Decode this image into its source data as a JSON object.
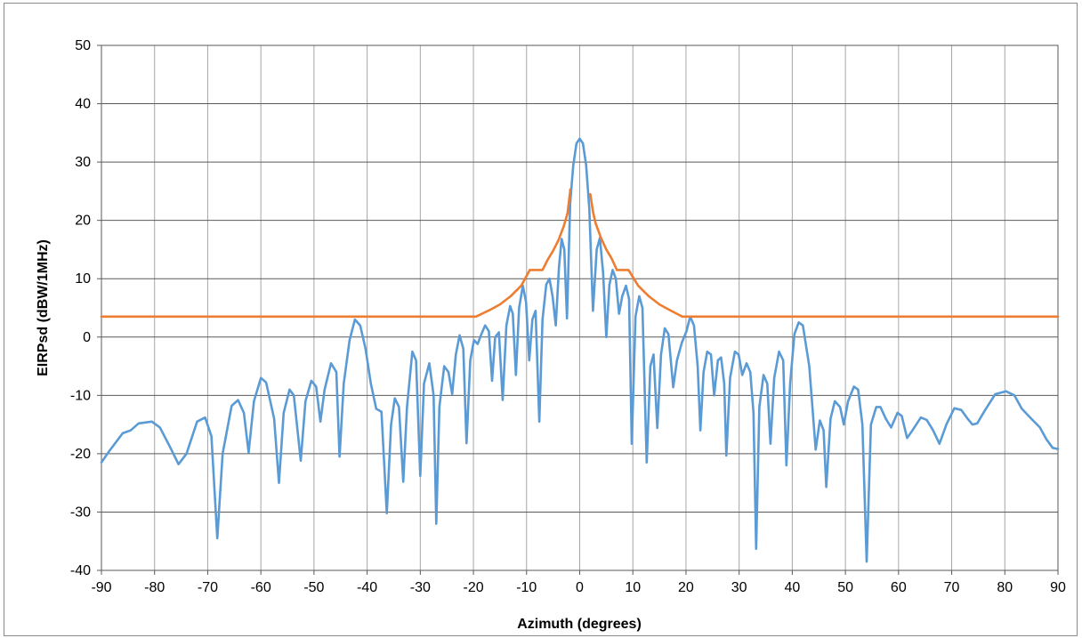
{
  "chart_data": {
    "type": "line",
    "title": "",
    "xlabel": "Azimuth (degrees)",
    "ylabel": "EIRPsd (dBW/1MHz)",
    "xlim": [
      -90,
      90
    ],
    "ylim": [
      -40,
      50
    ],
    "xticks": [
      "-90",
      "-80",
      "-70",
      "-60",
      "-50",
      "-40",
      "-30",
      "-20",
      "-10",
      "0",
      "10",
      "20",
      "30",
      "40",
      "50",
      "60",
      "70",
      "80",
      "90"
    ],
    "yticks": [
      "-40",
      "-30",
      "-20",
      "-10",
      "0",
      "10",
      "20",
      "30",
      "40",
      "50"
    ],
    "grid": true,
    "legend": "none",
    "series": [
      {
        "color": "#5B9BD5",
        "points": [
          [
            -90,
            -21.5
          ],
          [
            -88.5,
            -19.5
          ],
          [
            -86,
            -16.5
          ],
          [
            -84.5,
            -16
          ],
          [
            -83,
            -14.8
          ],
          [
            -80.5,
            -14.5
          ],
          [
            -79,
            -15.5
          ],
          [
            -77,
            -19
          ],
          [
            -75.5,
            -21.8
          ],
          [
            -74,
            -20
          ],
          [
            -72,
            -14.5
          ],
          [
            -70.5,
            -13.8
          ],
          [
            -69.3,
            -17
          ],
          [
            -68.2,
            -34.5
          ],
          [
            -67.2,
            -20
          ],
          [
            -65.5,
            -11.8
          ],
          [
            -64.3,
            -10.8
          ],
          [
            -63.2,
            -13
          ],
          [
            -62.3,
            -19.8
          ],
          [
            -61.3,
            -11
          ],
          [
            -60,
            -7
          ],
          [
            -59,
            -7.8
          ],
          [
            -57.5,
            -14
          ],
          [
            -56.6,
            -25
          ],
          [
            -55.7,
            -13
          ],
          [
            -54.6,
            -9
          ],
          [
            -53.8,
            -10
          ],
          [
            -52.5,
            -21.2
          ],
          [
            -51.6,
            -11
          ],
          [
            -50.5,
            -7.5
          ],
          [
            -49.6,
            -8.5
          ],
          [
            -48.8,
            -14.5
          ],
          [
            -48,
            -9
          ],
          [
            -46.8,
            -4.5
          ],
          [
            -45.8,
            -6
          ],
          [
            -45.2,
            -20.5
          ],
          [
            -44.4,
            -8
          ],
          [
            -43.3,
            -0.5
          ],
          [
            -42.3,
            3
          ],
          [
            -41.3,
            2
          ],
          [
            -40.3,
            -2
          ],
          [
            -39.3,
            -8
          ],
          [
            -38.3,
            -12.3
          ],
          [
            -37.3,
            -12.8
          ],
          [
            -36.3,
            -30.2
          ],
          [
            -35.5,
            -15
          ],
          [
            -34.8,
            -10.5
          ],
          [
            -34,
            -12
          ],
          [
            -33.2,
            -24.8
          ],
          [
            -32.5,
            -12
          ],
          [
            -31.5,
            -2.5
          ],
          [
            -30.8,
            -4
          ],
          [
            -30,
            -23.8
          ],
          [
            -29.3,
            -8
          ],
          [
            -28.3,
            -4.5
          ],
          [
            -27.5,
            -10
          ],
          [
            -27,
            -32
          ],
          [
            -26.4,
            -12
          ],
          [
            -25.5,
            -5
          ],
          [
            -24.7,
            -6
          ],
          [
            -24,
            -9.8
          ],
          [
            -23.3,
            -3
          ],
          [
            -22.6,
            0.3
          ],
          [
            -21.9,
            -2
          ],
          [
            -21.3,
            -18.2
          ],
          [
            -20.6,
            -4
          ],
          [
            -19.9,
            -0.5
          ],
          [
            -19.2,
            -1.2
          ],
          [
            -18.5,
            0.5
          ],
          [
            -17.8,
            2
          ],
          [
            -17.1,
            1
          ],
          [
            -16.5,
            -7.5
          ],
          [
            -15.9,
            0
          ],
          [
            -15.2,
            0.8
          ],
          [
            -14.5,
            -10.8
          ],
          [
            -13.8,
            2
          ],
          [
            -13.1,
            5.3
          ],
          [
            -12.6,
            4
          ],
          [
            -12,
            -6.5
          ],
          [
            -11.4,
            5
          ],
          [
            -10.7,
            8.8
          ],
          [
            -10.1,
            6
          ],
          [
            -9.5,
            -4
          ],
          [
            -8.9,
            3
          ],
          [
            -8.3,
            4.5
          ],
          [
            -7.6,
            -14.5
          ],
          [
            -7,
            3
          ],
          [
            -6.3,
            9
          ],
          [
            -5.7,
            10
          ],
          [
            -5.1,
            7
          ],
          [
            -4.5,
            2
          ],
          [
            -3.9,
            12
          ],
          [
            -3.4,
            16.8
          ],
          [
            -2.9,
            15
          ],
          [
            -2.4,
            3.2
          ],
          [
            -1.8,
            23
          ],
          [
            -1.2,
            29.5
          ],
          [
            -0.6,
            33.2
          ],
          [
            0,
            34
          ],
          [
            0.6,
            33.2
          ],
          [
            1.2,
            29.5
          ],
          [
            1.8,
            22
          ],
          [
            2.5,
            4.5
          ],
          [
            3.2,
            15
          ],
          [
            3.8,
            17
          ],
          [
            4.4,
            11
          ],
          [
            5,
            0
          ],
          [
            5.6,
            9
          ],
          [
            6.2,
            11.5
          ],
          [
            6.8,
            10
          ],
          [
            7.4,
            4
          ],
          [
            8,
            7
          ],
          [
            8.7,
            8.8
          ],
          [
            9.3,
            6.5
          ],
          [
            9.8,
            -18.3
          ],
          [
            10.5,
            3.5
          ],
          [
            11.2,
            7
          ],
          [
            11.8,
            5
          ],
          [
            12.6,
            -21.5
          ],
          [
            13.3,
            -5
          ],
          [
            13.9,
            -3
          ],
          [
            14.6,
            -15.6
          ],
          [
            15.3,
            -3
          ],
          [
            16,
            1.5
          ],
          [
            16.7,
            0.5
          ],
          [
            17.6,
            -8.6
          ],
          [
            18.3,
            -4
          ],
          [
            19.2,
            -1
          ],
          [
            20.1,
            1
          ],
          [
            20.8,
            3.5
          ],
          [
            21.5,
            2
          ],
          [
            22.2,
            -5
          ],
          [
            22.7,
            -16
          ],
          [
            23.3,
            -6
          ],
          [
            24,
            -2.5
          ],
          [
            24.7,
            -3
          ],
          [
            25.3,
            -10
          ],
          [
            26,
            -4
          ],
          [
            26.6,
            -3.5
          ],
          [
            27.2,
            -8
          ],
          [
            27.6,
            -20.3
          ],
          [
            28.3,
            -7
          ],
          [
            29.2,
            -2.5
          ],
          [
            29.9,
            -3
          ],
          [
            30.6,
            -6.5
          ],
          [
            31.4,
            -4.5
          ],
          [
            32.1,
            -6
          ],
          [
            32.7,
            -13
          ],
          [
            33.2,
            -36.3
          ],
          [
            33.8,
            -12
          ],
          [
            34.6,
            -6.5
          ],
          [
            35.3,
            -8
          ],
          [
            35.9,
            -18.3
          ],
          [
            36.6,
            -7
          ],
          [
            37.5,
            -2.5
          ],
          [
            38.3,
            -4
          ],
          [
            38.9,
            -22
          ],
          [
            39.6,
            -8
          ],
          [
            40.4,
            0.5
          ],
          [
            41.2,
            2.5
          ],
          [
            42,
            2
          ],
          [
            43.2,
            -5
          ],
          [
            44.4,
            -19.3
          ],
          [
            45.2,
            -14.3
          ],
          [
            45.9,
            -16
          ],
          [
            46.4,
            -25.7
          ],
          [
            47.2,
            -14
          ],
          [
            48,
            -11
          ],
          [
            49,
            -12
          ],
          [
            49.7,
            -15
          ],
          [
            50.5,
            -11
          ],
          [
            51.6,
            -8.5
          ],
          [
            52.4,
            -9
          ],
          [
            53.2,
            -15
          ],
          [
            54,
            -38.5
          ],
          [
            54.8,
            -15
          ],
          [
            55.8,
            -12
          ],
          [
            56.6,
            -12
          ],
          [
            57.6,
            -14
          ],
          [
            58.6,
            -15.5
          ],
          [
            59.8,
            -13
          ],
          [
            60.6,
            -13.5
          ],
          [
            61.6,
            -17.3
          ],
          [
            62.6,
            -16
          ],
          [
            64.2,
            -13.8
          ],
          [
            65.3,
            -14.2
          ],
          [
            66.5,
            -16
          ],
          [
            67.7,
            -18.3
          ],
          [
            69,
            -15
          ],
          [
            70.5,
            -12.2
          ],
          [
            71.8,
            -12.5
          ],
          [
            73,
            -14
          ],
          [
            73.9,
            -15
          ],
          [
            74.8,
            -14.8
          ],
          [
            76.3,
            -12.5
          ],
          [
            78.2,
            -9.8
          ],
          [
            80.2,
            -9.3
          ],
          [
            81.8,
            -10
          ],
          [
            83.2,
            -12.3
          ],
          [
            85,
            -14
          ],
          [
            86.6,
            -15.5
          ],
          [
            87.8,
            -17.5
          ],
          [
            89,
            -19
          ],
          [
            90,
            -19.2
          ]
        ]
      },
      {
        "color": "#ED7D31",
        "points": [
          [
            -90,
            3.5
          ],
          [
            -19.5,
            3.5
          ],
          [
            -17,
            4.6
          ],
          [
            -15,
            5.6
          ],
          [
            -13,
            7
          ],
          [
            -11,
            8.8
          ],
          [
            -9.4,
            11.5
          ],
          [
            -7,
            11.5
          ],
          [
            -6,
            13.3
          ],
          [
            -5,
            14.8
          ],
          [
            -4,
            16.6
          ],
          [
            -3,
            19
          ],
          [
            -2.3,
            21.2
          ],
          [
            -1.8,
            25
          ],
          [
            -1.8,
            25.3
          ],
          [
            2,
            24.5
          ],
          [
            2,
            24.5
          ],
          [
            2.5,
            21.5
          ],
          [
            3,
            19.5
          ],
          [
            4,
            17
          ],
          [
            5,
            15
          ],
          [
            6,
            13.5
          ],
          [
            7,
            11.5
          ],
          [
            9.2,
            11.5
          ],
          [
            11,
            8.8
          ],
          [
            13,
            7
          ],
          [
            15,
            5.6
          ],
          [
            17,
            4.6
          ],
          [
            19.3,
            3.5
          ],
          [
            90,
            3.5
          ]
        ],
        "gap_after_index": 14
      }
    ]
  }
}
